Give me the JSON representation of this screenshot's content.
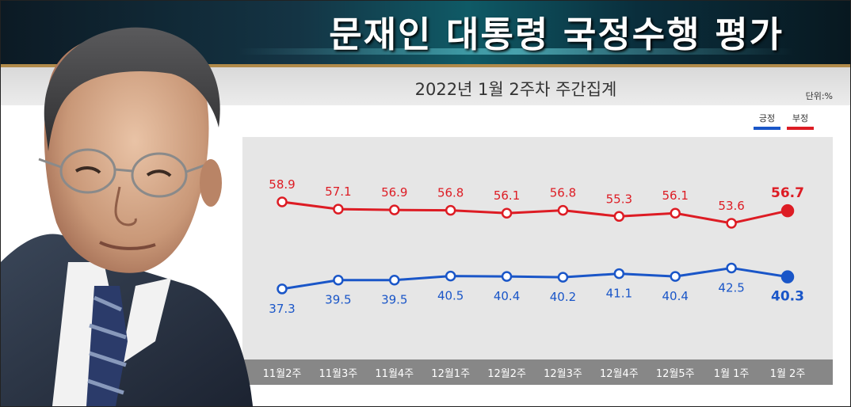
{
  "header": {
    "title": "문재인 대통령 국정수행 평가",
    "subtitle": "2022년 1월 2주차 주간집계",
    "unit": "단위:%"
  },
  "legend": {
    "positive_label": "긍정",
    "negative_label": "부정"
  },
  "colors": {
    "positive": "#1a56c8",
    "negative": "#dd1c24",
    "plot_bg": "#e6e6e6",
    "axis_strip": "#878787"
  },
  "photo": {
    "icon": "president-portrait-illustration"
  },
  "chart_data": {
    "type": "line",
    "title": "문재인 대통령 국정수행 평가",
    "subtitle": "2022년 1월 2주차 주간집계",
    "unit": "단위:%",
    "categories": [
      "11월2주",
      "11월3주",
      "11월4주",
      "12월1주",
      "12월2주",
      "12월3주",
      "12월4주",
      "12월5주",
      "1월 1주",
      "1월 2주"
    ],
    "series": [
      {
        "name": "부정",
        "color": "#dd1c24",
        "values": [
          58.9,
          57.1,
          56.9,
          56.8,
          56.1,
          56.8,
          55.3,
          56.1,
          53.6,
          56.7
        ]
      },
      {
        "name": "긍정",
        "color": "#1a56c8",
        "values": [
          37.3,
          39.5,
          39.5,
          40.5,
          40.4,
          40.2,
          41.1,
          40.4,
          42.5,
          40.3
        ]
      }
    ],
    "ylim": [
      20,
      75
    ],
    "grid": false,
    "legend_position": "top-right",
    "highlight_last": true
  }
}
